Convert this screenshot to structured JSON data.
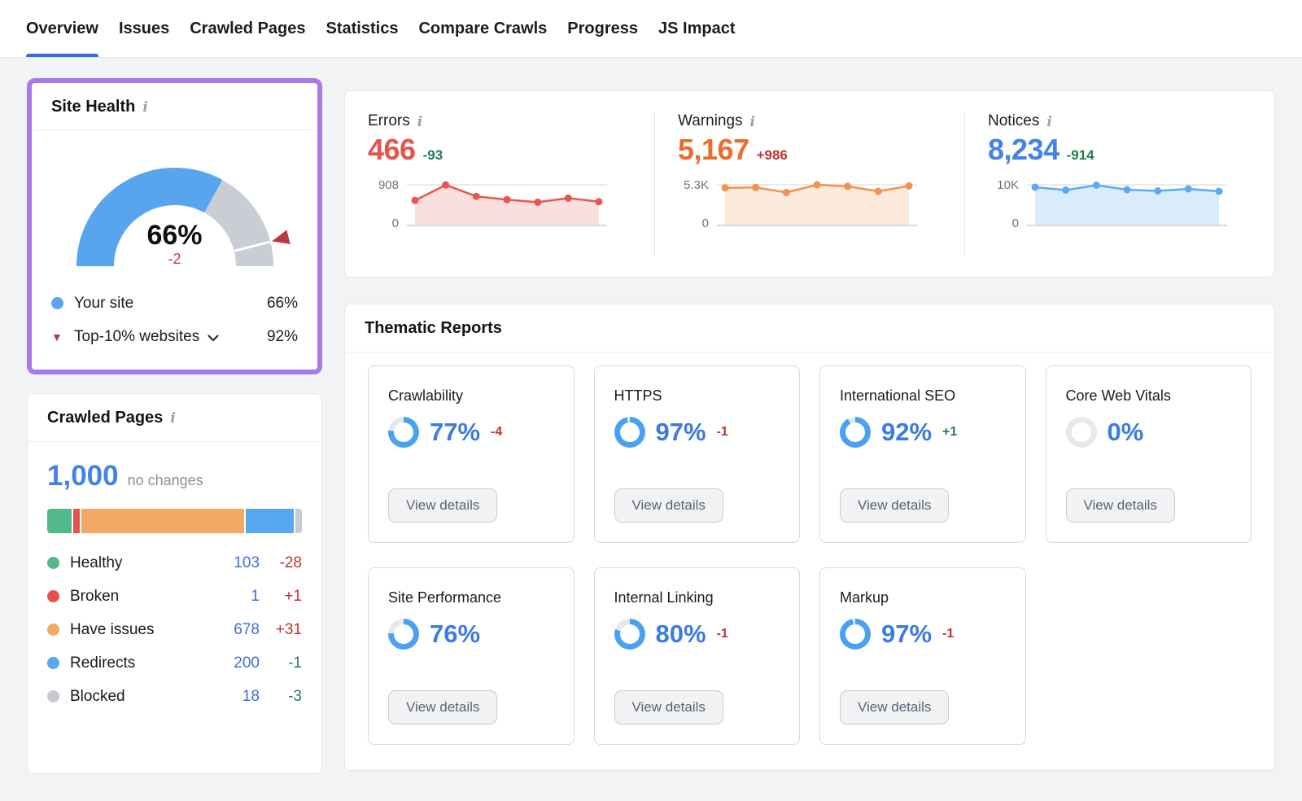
{
  "tabs": [
    {
      "label": "Overview",
      "active": true
    },
    {
      "label": "Issues",
      "active": false
    },
    {
      "label": "Crawled Pages",
      "active": false
    },
    {
      "label": "Statistics",
      "active": false
    },
    {
      "label": "Compare Crawls",
      "active": false
    },
    {
      "label": "Progress",
      "active": false
    },
    {
      "label": "JS Impact",
      "active": false
    }
  ],
  "site_health": {
    "title": "Site Health",
    "score_pct": 66,
    "score_label": "66%",
    "delta_label": "-2",
    "delta_color": "#cc3d3d",
    "benchmark_pct": 92,
    "legend": [
      {
        "label": "Your site",
        "value": "66%",
        "marker": "dot",
        "marker_color": "#58a5ee",
        "has_dropdown": false
      },
      {
        "label": "Top-10% websites",
        "value": "92%",
        "marker": "triangle-down",
        "marker_color": "#b63a3f",
        "has_dropdown": true
      }
    ]
  },
  "kpis": [
    {
      "name": "Errors",
      "value": "466",
      "value_color": "#e5544d",
      "delta": "-93",
      "delta_color": "#1f7d52",
      "axis_max_label": "908",
      "axis_min_label": "0",
      "axis_max_value": 908,
      "series": [
        560,
        905,
        650,
        575,
        520,
        610,
        530
      ],
      "line_color": "#e8564f",
      "fill_color": "#fbdfde"
    },
    {
      "name": "Warnings",
      "value": "5,167",
      "value_color": "#ec6b2d",
      "delta": "+986",
      "delta_color": "#c4332b",
      "axis_max_label": "5.3K",
      "axis_min_label": "0",
      "axis_max_value": 5300,
      "series": [
        4900,
        4950,
        4300,
        5300,
        5100,
        4450,
        5150
      ],
      "line_color": "#ef9350",
      "fill_color": "#fbe9da"
    },
    {
      "name": "Notices",
      "value": "8,234",
      "value_color": "#4183e6",
      "delta": "-914",
      "delta_color": "#1f7d52",
      "axis_max_label": "10K",
      "axis_min_label": "0",
      "axis_max_value": 10000,
      "series": [
        9400,
        8700,
        9900,
        8800,
        8500,
        9000,
        8400
      ],
      "line_color": "#5babf0",
      "fill_color": "#d9ecfb"
    }
  ],
  "crawled_pages": {
    "title": "Crawled Pages",
    "total_label": "1,000",
    "total_value": 1000,
    "total_color": "#4183e6",
    "note": "no changes",
    "value_color": "#3d6fd8",
    "segments": [
      {
        "label": "Healthy",
        "value": 103,
        "value_label": "103",
        "delta": "-28",
        "delta_color": "#c4332b",
        "color": "#52b98b",
        "gap_before": false
      },
      {
        "label": "Broken",
        "value": 1,
        "value_label": "1",
        "delta": "+1",
        "delta_color": "#c4332b",
        "color": "#e4524e",
        "gap_before": true
      },
      {
        "label": "Have issues",
        "value": 678,
        "value_label": "678",
        "delta": "+31",
        "delta_color": "#c4332b",
        "color": "#f2a963",
        "gap_before": true
      },
      {
        "label": "Redirects",
        "value": 200,
        "value_label": "200",
        "delta": "-1",
        "delta_color": "#1f7d52",
        "color": "#57a7ef",
        "gap_before": true
      },
      {
        "label": "Blocked",
        "value": 18,
        "value_label": "18",
        "delta": "-3",
        "delta_color": "#1f7d52",
        "color": "#c6cad2",
        "gap_before": true
      }
    ]
  },
  "thematic": {
    "title": "Thematic Reports",
    "button_label": "View details",
    "percent_color": "#3c7be4",
    "cards": [
      {
        "title": "Crawlability",
        "pct": 77,
        "pct_label": "77%",
        "delta": "-4",
        "delta_color": "#c4332b"
      },
      {
        "title": "HTTPS",
        "pct": 97,
        "pct_label": "97%",
        "delta": "-1",
        "delta_color": "#c4332b"
      },
      {
        "title": "International SEO",
        "pct": 92,
        "pct_label": "92%",
        "delta": "+1",
        "delta_color": "#1f7d52"
      },
      {
        "title": "Core Web Vitals",
        "pct": 0,
        "pct_label": "0%",
        "delta": "",
        "delta_color": ""
      },
      {
        "title": "Site Performance",
        "pct": 76,
        "pct_label": "76%",
        "delta": "",
        "delta_color": ""
      },
      {
        "title": "Internal Linking",
        "pct": 80,
        "pct_label": "80%",
        "delta": "-1",
        "delta_color": "#c4332b"
      },
      {
        "title": "Markup",
        "pct": 97,
        "pct_label": "97%",
        "delta": "-1",
        "delta_color": "#c4332b"
      }
    ]
  },
  "colors": {
    "accent_blue": "#2e6be5",
    "gauge_blue": "#58a5ee",
    "gauge_track": "#c9cdd4",
    "gauge_marker": "#b63a3f",
    "donut_blue": "#4aa1f0",
    "donut_track": "#e5e8ec",
    "highlight_purple": "#a879e8",
    "info_gray": "#9aa0a8"
  },
  "info_icon_glyph": "i"
}
